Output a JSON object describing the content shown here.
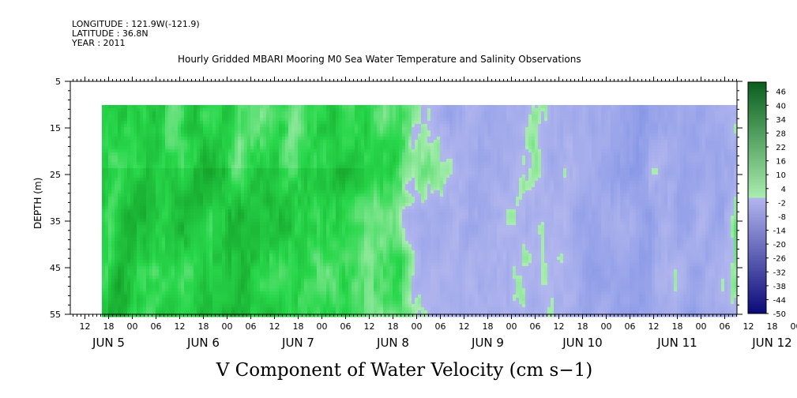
{
  "header": {
    "longitude": "LONGITUDE : 121.9W(-121.9)",
    "latitude": "LATITUDE : 36.8N",
    "year": "YEAR : 2011",
    "title": "Hourly Gridded MBARI Mooring M0 Sea Water Temperature and Salinity Observations"
  },
  "chart_data": {
    "type": "heatmap",
    "title": "Hourly Gridded MBARI Mooring M0 Sea Water Temperature and Salinity Observations",
    "xlabel": "V Component of Water Velocity (cm s−1)",
    "ylabel": "DEPTH (m)",
    "x_range_hours": [
      "2011-06-04 12:00",
      "2011-06-12 09:00"
    ],
    "x_hour_ticks": [
      "12",
      "18",
      "00",
      "06",
      "12",
      "18",
      "00",
      "06",
      "12",
      "18",
      "00",
      "06",
      "12",
      "18",
      "00",
      "06",
      "12",
      "18",
      "00",
      "06",
      "12",
      "18",
      "00",
      "06",
      "12",
      "18",
      "00",
      "06",
      "12",
      "18",
      "00",
      "06"
    ],
    "x_day_labels": [
      "JUN 5",
      "JUN 6",
      "JUN 7",
      "JUN 8",
      "JUN 9",
      "JUN 10",
      "JUN 11",
      "JUN 12"
    ],
    "y_ticks": [
      5,
      15,
      25,
      35,
      45,
      55
    ],
    "y_range": [
      5,
      55
    ],
    "y_inverted": true,
    "data_depth_range": [
      10,
      55
    ],
    "colorbar": {
      "levels": [
        46,
        40,
        34,
        28,
        22,
        16,
        10,
        4,
        -2,
        -8,
        -14,
        -20,
        -26,
        -32,
        -38,
        -44,
        -50
      ],
      "range": [
        -50,
        50
      ],
      "negative_color": "#8c9ee6",
      "positive_color": "#24d84a",
      "near_zero_color": "#a7ebae"
    },
    "periods": [
      {
        "from": "2011-06-04 18:00",
        "to": "2011-06-07 18:00",
        "mean_v": 15,
        "description": "mostly positive (green)"
      },
      {
        "from": "2011-06-07 18:00",
        "to": "2011-06-09 12:00",
        "mean_v": -8,
        "description": "mostly negative (blue) with green patches"
      },
      {
        "from": "2011-06-09 12:00",
        "to": "2011-06-11 00:00",
        "mean_v": -12,
        "description": "mostly negative (blue)"
      },
      {
        "from": "2011-06-11 00:00",
        "to": "2011-06-12 09:00",
        "mean_v": 0,
        "description": "mixed, green near bottom"
      }
    ]
  }
}
